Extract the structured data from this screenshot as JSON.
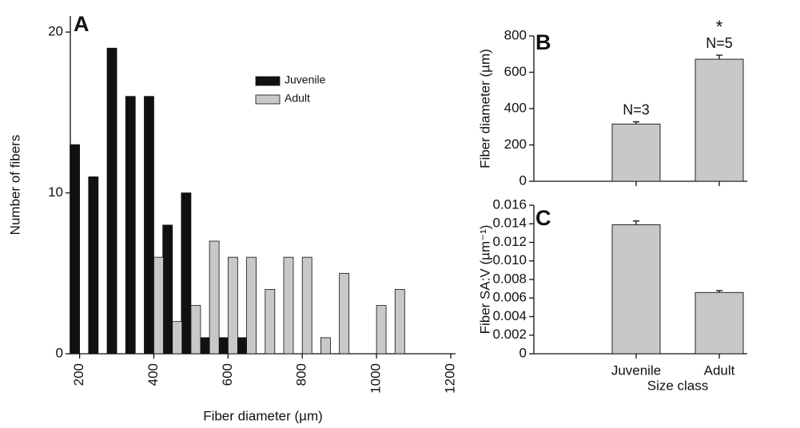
{
  "chart_data": [
    {
      "type": "bar",
      "label": "A",
      "xlabel": "Fiber diameter (µm)",
      "ylabel": "Number of fibers",
      "xlim": [
        175,
        1213
      ],
      "xticks": [
        200,
        400,
        600,
        800,
        1000,
        1200
      ],
      "ylim": [
        0,
        21
      ],
      "yticks": [
        0,
        10,
        20
      ],
      "series": [
        {
          "name": "Juvenile",
          "color": "#111111",
          "x": [
            200,
            250,
            300,
            350,
            400,
            450,
            500,
            550,
            600,
            650
          ],
          "values": [
            13,
            11,
            19,
            16,
            16,
            8,
            10,
            1,
            1,
            1
          ]
        },
        {
          "name": "Adult",
          "color": "#c8c8c8",
          "x": [
            400,
            450,
            500,
            550,
            600,
            650,
            700,
            750,
            800,
            850,
            900,
            1000,
            1050
          ],
          "values": [
            6,
            2,
            3,
            7,
            6,
            6,
            4,
            6,
            6,
            1,
            5,
            3,
            4
          ]
        }
      ]
    },
    {
      "type": "bar",
      "label": "B",
      "ylabel": "Fiber diameter (µm)",
      "color": "#c8c8c8",
      "values": [
        315,
        672
      ],
      "errors": [
        12,
        22
      ],
      "annotations": [
        "N=3",
        "N=5",
        "*"
      ],
      "ylim": [
        0,
        800
      ],
      "yticks": [
        0,
        200,
        400,
        600,
        800
      ]
    },
    {
      "type": "bar",
      "label": "C",
      "ylabel": "Fiber SA:V (µm⁻¹)",
      "xlabel": "Size class",
      "color": "#c8c8c8",
      "categories": [
        "Juvenile",
        "Adult"
      ],
      "values": [
        0.0139,
        0.0066
      ],
      "errors": [
        0.0004,
        0.0002
      ],
      "ylim": [
        0,
        0.016
      ],
      "yticks": [
        0,
        0.002,
        0.004,
        0.006,
        0.008,
        {
          "value": 0.01,
          "label": "0.010"
        },
        0.012,
        0.014,
        0.016
      ]
    }
  ]
}
